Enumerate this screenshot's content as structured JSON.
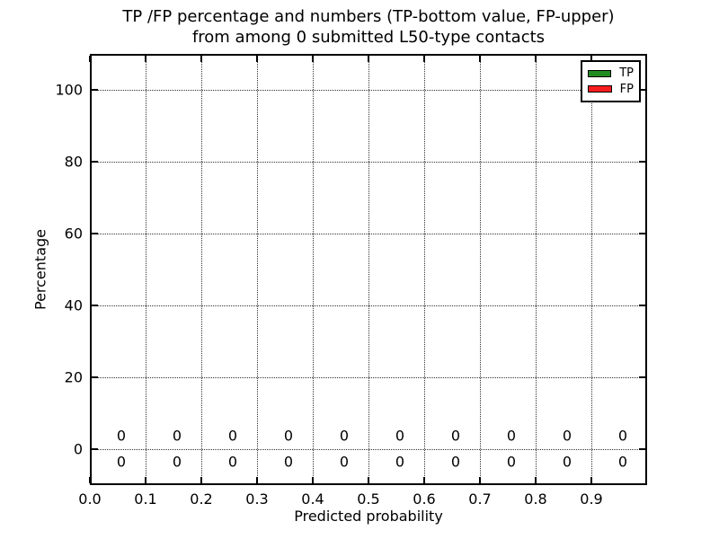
{
  "chart_data": {
    "type": "bar",
    "title": "TP /FP percentage and numbers (TP-bottom value, FP-upper)",
    "subtitle": "from among 0 submitted L50-type contacts",
    "xlabel": "Predicted probability",
    "ylabel": "Percentage",
    "xlim": [
      0.0,
      1.0
    ],
    "ylim": [
      -10,
      110
    ],
    "x_tick_labels": [
      "0.0",
      "0.1",
      "0.2",
      "0.3",
      "0.4",
      "0.5",
      "0.6",
      "0.7",
      "0.8",
      "0.9"
    ],
    "y_tick_values": [
      0,
      20,
      40,
      60,
      80,
      100
    ],
    "grid": {
      "visible": true,
      "linestyle": "dotted",
      "color": "#000000"
    },
    "legend": {
      "position": "upper-right",
      "entries": [
        {
          "label": "TP",
          "color": "#208b20"
        },
        {
          "label": "FP",
          "color": "#fa1e1e"
        }
      ]
    },
    "bin_centers": [
      0.05,
      0.15,
      0.25,
      0.35,
      0.45,
      0.55,
      0.65,
      0.75,
      0.85,
      0.95
    ],
    "series": [
      {
        "name": "TP",
        "annotation_row": "bottom",
        "percent_values": [
          0,
          0,
          0,
          0,
          0,
          0,
          0,
          0,
          0,
          0
        ],
        "count_labels": [
          "0",
          "0",
          "0",
          "0",
          "0",
          "0",
          "0",
          "0",
          "0",
          "0"
        ]
      },
      {
        "name": "FP",
        "annotation_row": "upper",
        "percent_values": [
          0,
          0,
          0,
          0,
          0,
          0,
          0,
          0,
          0,
          0
        ],
        "count_labels": [
          "0",
          "0",
          "0",
          "0",
          "0",
          "0",
          "0",
          "0",
          "0",
          "0"
        ]
      }
    ]
  }
}
